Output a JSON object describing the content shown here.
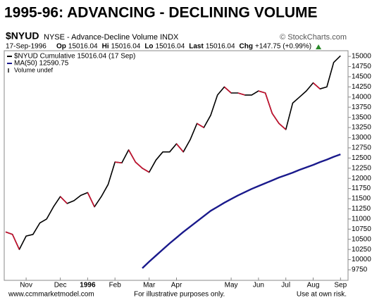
{
  "chart_data": {
    "type": "line",
    "title": "1995-96:  ADVANCING - DECLINING VOLUME",
    "symbol": "$NYUD",
    "description": "NYSE - Advance-Decline Volume INDX",
    "source": "© StockCharts.com",
    "date": "17-Sep-1996",
    "quote": [
      {
        "label": "Op",
        "value": 15016.04
      },
      {
        "label": "Hi",
        "value": 15016.04
      },
      {
        "label": "Lo",
        "value": 15016.04
      },
      {
        "label": "Last",
        "value": 15016.04
      },
      {
        "label": "Chg",
        "value": "+147.75 (+0.99%)"
      }
    ],
    "volume_note": "Volume undef",
    "footer": [
      "www.ccmmarketmodel.com",
      "For illustrative purposes only.",
      "Use at own risk."
    ],
    "categories": [
      null,
      null,
      null,
      "Nov",
      null,
      null,
      null,
      null,
      "Dec",
      null,
      null,
      null,
      "1996",
      null,
      null,
      null,
      "Feb",
      null,
      null,
      null,
      null,
      "Mar",
      null,
      null,
      null,
      "Apr",
      null,
      null,
      null,
      null,
      null,
      null,
      null,
      "May",
      null,
      null,
      null,
      "Jun",
      null,
      null,
      null,
      "Jul",
      null,
      null,
      null,
      "Aug",
      null,
      null,
      null,
      "Sep"
    ],
    "series": [
      {
        "name": "$NYUD Cumulative 15016.04 (17 Sep)",
        "color": "#000000",
        "down_color": "#c8102e",
        "values": [
          10680,
          10620,
          10250,
          10580,
          10620,
          10900,
          11000,
          11300,
          11550,
          11380,
          11450,
          11580,
          11650,
          11300,
          11550,
          11850,
          12400,
          12380,
          12700,
          12400,
          12250,
          12150,
          12450,
          12650,
          12650,
          12850,
          12650,
          12950,
          13350,
          13250,
          13550,
          14050,
          14250,
          14100,
          14100,
          14050,
          14050,
          14150,
          14100,
          13600,
          13350,
          13200,
          13850,
          14000,
          14150,
          14350,
          14200,
          14250,
          14850,
          15016.04
        ]
      },
      {
        "name": "MA(50) 12590.75",
        "color": "#1a1a8c",
        "values": [
          null,
          null,
          null,
          null,
          null,
          null,
          null,
          null,
          null,
          null,
          null,
          null,
          null,
          null,
          null,
          null,
          null,
          null,
          null,
          null,
          9790,
          9950,
          10100,
          10250,
          10400,
          10540,
          10680,
          10810,
          10940,
          11070,
          11200,
          11300,
          11400,
          11490,
          11580,
          11660,
          11740,
          11810,
          11880,
          11950,
          12020,
          12080,
          12140,
          12210,
          12270,
          12330,
          12400,
          12460,
          12530,
          12590.75
        ]
      }
    ],
    "ylim": [
      9490,
      15140
    ],
    "yticks": [
      9750,
      10000,
      10250,
      10500,
      10750,
      11000,
      11250,
      11500,
      11750,
      12000,
      12250,
      12500,
      12750,
      13000,
      13250,
      13500,
      13750,
      14000,
      14250,
      14500,
      14750,
      15000
    ],
    "grid": false
  }
}
